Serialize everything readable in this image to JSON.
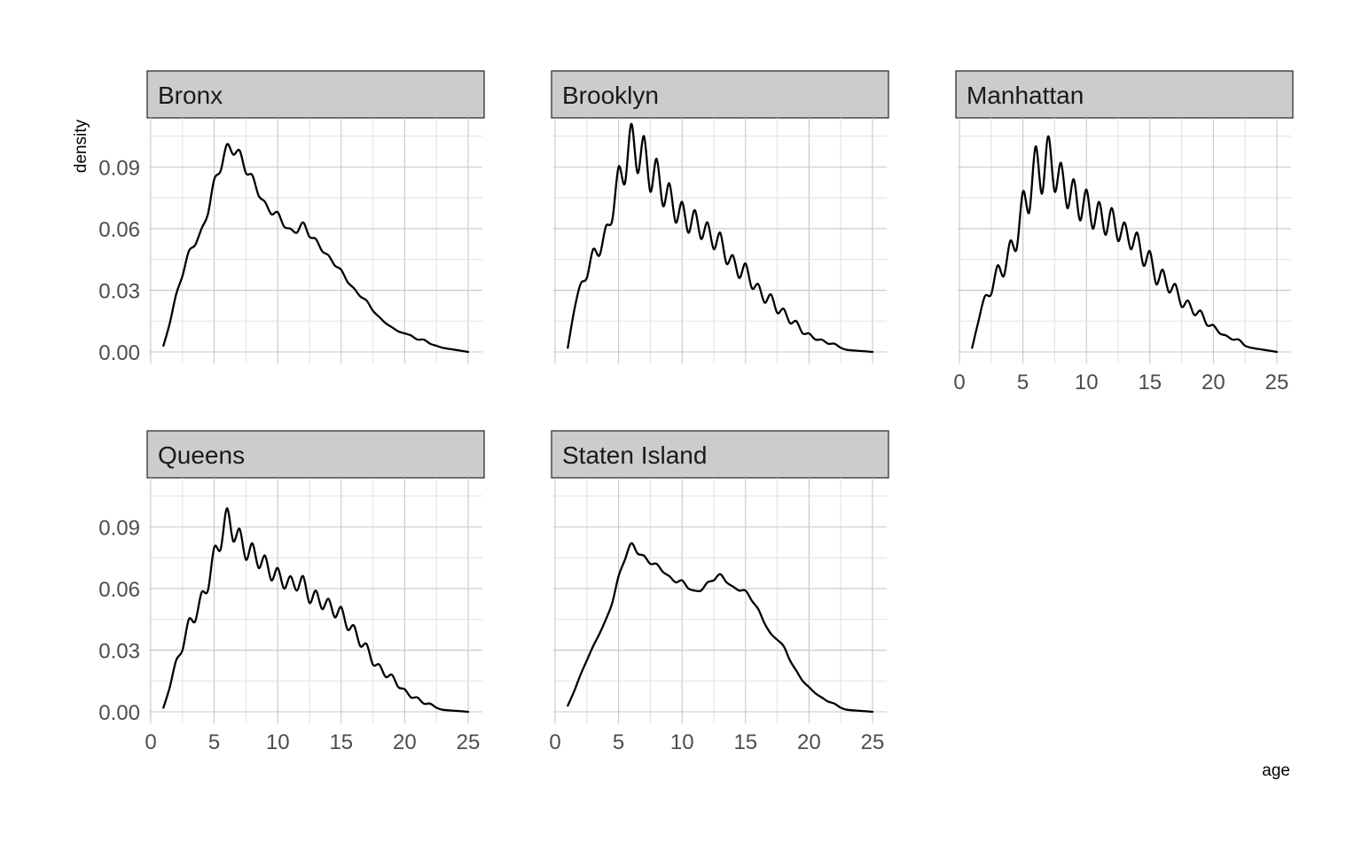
{
  "chart_data": {
    "type": "line",
    "xlabel": "age",
    "ylabel": "density",
    "xlim": [
      0,
      25
    ],
    "ylim": [
      0,
      0.11
    ],
    "x_ticks": [
      "0",
      "5",
      "10",
      "15",
      "20",
      "25"
    ],
    "x_tick_values": [
      0,
      5,
      10,
      15,
      20,
      25
    ],
    "y_ticks": [
      "0.00",
      "0.03",
      "0.06",
      "0.09"
    ],
    "y_tick_values": [
      0,
      0.03,
      0.06,
      0.09
    ],
    "grid": true,
    "legend": "none",
    "facets": [
      {
        "name": "Bronx",
        "x": [
          1,
          1.5,
          2,
          2.5,
          3,
          3.5,
          4,
          4.5,
          5,
          5.5,
          6,
          6.5,
          7,
          7.5,
          8,
          8.5,
          9,
          9.5,
          10,
          10.5,
          11,
          11.5,
          12,
          12.5,
          13,
          13.5,
          14,
          14.5,
          15,
          15.5,
          16,
          16.5,
          17,
          17.5,
          18,
          18.5,
          19,
          19.5,
          20,
          20.5,
          21,
          21.5,
          22,
          22.5,
          23,
          24,
          25
        ],
        "y": [
          0.003,
          0.014,
          0.028,
          0.037,
          0.049,
          0.052,
          0.06,
          0.067,
          0.084,
          0.088,
          0.101,
          0.096,
          0.098,
          0.087,
          0.086,
          0.076,
          0.073,
          0.067,
          0.068,
          0.061,
          0.06,
          0.058,
          0.063,
          0.056,
          0.055,
          0.049,
          0.047,
          0.042,
          0.04,
          0.034,
          0.031,
          0.027,
          0.025,
          0.02,
          0.017,
          0.014,
          0.012,
          0.01,
          0.009,
          0.008,
          0.006,
          0.006,
          0.004,
          0.003,
          0.002,
          0.001,
          0
        ]
      },
      {
        "name": "Brooklyn",
        "x": [
          1,
          1.5,
          2,
          2.5,
          3,
          3.5,
          4,
          4.5,
          5,
          5.5,
          6,
          6.5,
          7,
          7.5,
          8,
          8.5,
          9,
          9.5,
          10,
          10.5,
          11,
          11.5,
          12,
          12.5,
          13,
          13.5,
          14,
          14.5,
          15,
          15.5,
          16,
          16.5,
          17,
          17.5,
          18,
          18.5,
          19,
          19.5,
          20,
          20.5,
          21,
          21.5,
          22,
          22.5,
          23,
          24,
          25
        ],
        "y": [
          0.002,
          0.02,
          0.033,
          0.036,
          0.05,
          0.047,
          0.061,
          0.064,
          0.09,
          0.082,
          0.111,
          0.087,
          0.105,
          0.078,
          0.094,
          0.071,
          0.082,
          0.063,
          0.073,
          0.058,
          0.069,
          0.055,
          0.063,
          0.05,
          0.058,
          0.043,
          0.047,
          0.036,
          0.043,
          0.031,
          0.033,
          0.024,
          0.028,
          0.019,
          0.021,
          0.014,
          0.015,
          0.009,
          0.009,
          0.006,
          0.006,
          0.004,
          0.004,
          0.002,
          0.001,
          0.0005,
          0
        ]
      },
      {
        "name": "Manhattan",
        "x": [
          1,
          1.5,
          2,
          2.5,
          3,
          3.5,
          4,
          4.5,
          5,
          5.5,
          6,
          6.5,
          7,
          7.5,
          8,
          8.5,
          9,
          9.5,
          10,
          10.5,
          11,
          11.5,
          12,
          12.5,
          13,
          13.5,
          14,
          14.5,
          15,
          15.5,
          16,
          16.5,
          17,
          17.5,
          18,
          18.5,
          19,
          19.5,
          20,
          20.5,
          21,
          21.5,
          22,
          22.5,
          23,
          24,
          25
        ],
        "y": [
          0.002,
          0.015,
          0.027,
          0.028,
          0.042,
          0.037,
          0.054,
          0.05,
          0.078,
          0.068,
          0.1,
          0.077,
          0.105,
          0.078,
          0.092,
          0.07,
          0.084,
          0.064,
          0.079,
          0.06,
          0.073,
          0.057,
          0.07,
          0.054,
          0.063,
          0.05,
          0.058,
          0.042,
          0.049,
          0.033,
          0.04,
          0.029,
          0.033,
          0.022,
          0.025,
          0.018,
          0.02,
          0.013,
          0.013,
          0.009,
          0.008,
          0.006,
          0.006,
          0.003,
          0.002,
          0.001,
          0
        ]
      },
      {
        "name": "Queens",
        "x": [
          1,
          1.5,
          2,
          2.5,
          3,
          3.5,
          4,
          4.5,
          5,
          5.5,
          6,
          6.5,
          7,
          7.5,
          8,
          8.5,
          9,
          9.5,
          10,
          10.5,
          11,
          11.5,
          12,
          12.5,
          13,
          13.5,
          14,
          14.5,
          15,
          15.5,
          16,
          16.5,
          17,
          17.5,
          18,
          18.5,
          19,
          19.5,
          20,
          20.5,
          21,
          21.5,
          22,
          22.5,
          23,
          24,
          25
        ],
        "y": [
          0.002,
          0.012,
          0.025,
          0.03,
          0.045,
          0.044,
          0.058,
          0.059,
          0.08,
          0.079,
          0.099,
          0.083,
          0.089,
          0.074,
          0.082,
          0.07,
          0.076,
          0.064,
          0.07,
          0.06,
          0.066,
          0.059,
          0.066,
          0.053,
          0.059,
          0.05,
          0.055,
          0.046,
          0.051,
          0.04,
          0.042,
          0.032,
          0.033,
          0.023,
          0.023,
          0.017,
          0.018,
          0.012,
          0.011,
          0.007,
          0.007,
          0.004,
          0.004,
          0.002,
          0.001,
          0.0005,
          0
        ]
      },
      {
        "name": "Staten Island",
        "x": [
          1,
          1.5,
          2,
          2.5,
          3,
          3.5,
          4,
          4.5,
          5,
          5.5,
          6,
          6.5,
          7,
          7.5,
          8,
          8.5,
          9,
          9.5,
          10,
          10.5,
          11,
          11.5,
          12,
          12.5,
          13,
          13.5,
          14,
          14.5,
          15,
          15.5,
          16,
          16.5,
          17,
          17.5,
          18,
          18.5,
          19,
          19.5,
          20,
          20.5,
          21,
          21.5,
          22,
          22.5,
          23,
          24,
          25
        ],
        "y": [
          0.003,
          0.01,
          0.018,
          0.025,
          0.032,
          0.038,
          0.045,
          0.053,
          0.066,
          0.074,
          0.082,
          0.077,
          0.076,
          0.072,
          0.072,
          0.068,
          0.066,
          0.063,
          0.064,
          0.06,
          0.059,
          0.059,
          0.063,
          0.064,
          0.067,
          0.063,
          0.061,
          0.059,
          0.059,
          0.054,
          0.05,
          0.043,
          0.038,
          0.035,
          0.032,
          0.025,
          0.02,
          0.015,
          0.012,
          0.009,
          0.007,
          0.005,
          0.004,
          0.002,
          0.001,
          0.0005,
          0
        ]
      }
    ]
  }
}
